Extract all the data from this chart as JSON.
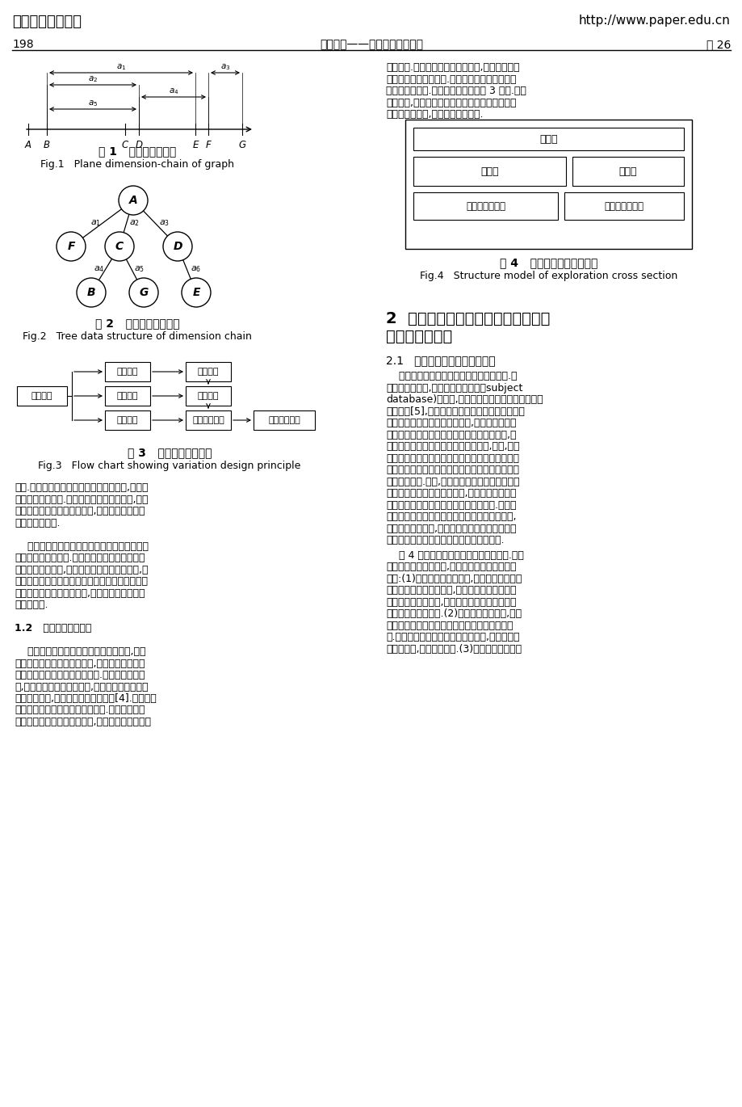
{
  "bg_color": "#ffffff",
  "header_left": "中国科技论文在线",
  "header_url": "http://www.paper.edu.cn",
  "header_page_num": "198",
  "header_journal": "地球科学——中国地质大学学报",
  "header_vol": "第 26",
  "fig1_caption_cn": "图 1   图形水平尺寸链",
  "fig1_caption_en": "Fig.1   Plane dimension-chain of graph",
  "fig2_caption_cn": "图 2   尺寸链的树状结构",
  "fig2_caption_en": "Fig.2   Tree data structure of dimension chain",
  "fig3_caption_cn": "图 3   变量设计原理示意",
  "fig3_caption_en": "Fig.3   Flow chart showing variation design principle",
  "fig4_caption_cn": "图 4   勘探剖面图的结构模型",
  "fig4_caption_en": "Fig.4   Structure model of exploration cross section",
  "section2_line1": "2  参数化图形设计方法在图件编绘系",
  "section2_line2": "统中的应用途径",
  "section21_title": "2.1   图件模型的灵活建立与复用",
  "rp1_lines": [
    "约束两类.尺寸约束限制元素的大小,并对长度、半",
    "径和相交角度进行限制.几何约束限制元素的方位",
    "或相对位置关系.变量设计的原理如图 3 所示.从理",
    "论角度看,变量设计系统比尺寸驱动系统或传统的",
    "建模系统更灵活,更适合于概念设计."
  ],
  "rp2_lines": [
    "    这是参数化图形设计方法的主要应用之一.在",
    "资源信息系统中,虽然有主题数据库（subject",
    "database)的支撑,实现了图形原始数据的标准化管",
    "理和提取[5],同时国家和部门也制定了相应的技术",
    "标准来规范化图件各要素的绘制,但是目前还没有",
    "国家和部门的统一标准来约束图件格式标准化,这",
    "意味着勘查图件的编绘模型不是唯一的,例如,最基",
    "础的钻孔柱状图在水利勘查部门中北京勘测设计院",
    "和河南勘测设计院以及广东勘测设计院所要求的格",
    "式都有所差别.因此,对图件编绘系统在全局图件模",
    "型的建立上提出了更高的要求,需要针对不同部门",
    "和不同使用对象快速建立相应的图件模型.传统做",
    "法是为每一不同图件开发一一对应图件编绘程序,",
    "工作量大且效率低,而使用上述参数化设计方法则",
    "可大大提高图件模型建立的灵活性和方便性."
  ],
  "rp3_lines": [
    "    图 4 所示为勘探剖面图的总体结构模型.在参",
    "数化设计方法的作用下,可以实现以下几个方面的",
    "功能:(1)在图形的几何约束下,能保证各绘图区的",
    "相对位置关系和属性特征,如图名区可以保证在主",
    "图区和图例区的上方,同时随着图幅大小的变化始",
    "终让其处于居中状态.(2)由于约束可以分级,各图",
    "区内部的要素相关关系不会影响到图区之间的关",
    "系.通过尺寸约束限制内部元素的大小,并对元素特",
    "征加以规范,使之符合标准.(3)约束可以修改和重"
  ],
  "lp_lines": [
    "结构.结点表示一条尺寸界线所处的坐标点,结点间",
    "的连线表示尺寸线.当某一段尺寸发生改变时,对应",
    "的所有结点都作出相应的改变,从而自动完成整个",
    "几何形体的修改.",
    "",
    "    注意需要将这里的尺寸概念同机械制图中显式",
    "的尺寸标注区别开来.我们的尺寸概念是指几何实",
    "体本身的自然属性,如圆的半径或直线的长度等,而",
    "机械制图中尺寸驱动是指通过改变图上的尺寸标注",
    "值改变相应几何形体的尺寸,但两者内部的驱动机",
    "制是相同的.",
    "",
    "1.2   变量几何法的原理",
    "",
    "    变量几何法是一种基于约束的代数方法,它将",
    "几何模型定义成一系列特征点,并以特征点坐标为",
    "变量形成一个非线性约束方程组.当约束发生变化",
    "时,利用迭代方法求解方程组,就可以求出一系列变",
    "化后的特征点,从而输出新的几何模型[4].变量几何",
    "法的两个重要概念是约束和自由度.约束是对几何",
    "元素大小、位置和方向的限制,分为尺寸约束和几何"
  ]
}
